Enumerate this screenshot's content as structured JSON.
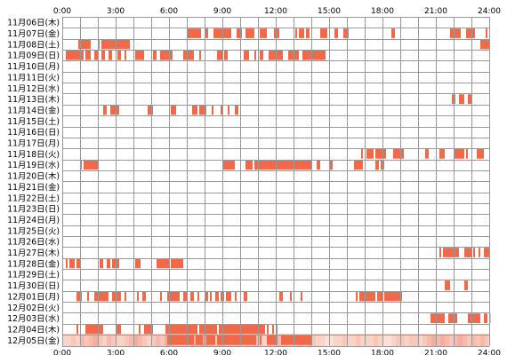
{
  "chart_data": {
    "type": "heatmap",
    "title": "",
    "xlabel": "",
    "ylabel": "",
    "x_range_hours": [
      0,
      24
    ],
    "x_ticks": [
      "0:00",
      "3:00",
      "6:00",
      "9:00",
      "12:00",
      "15:00",
      "18:00",
      "21:00",
      "24:00"
    ],
    "grid": true,
    "colors": {
      "activity": "#f2694a",
      "grid": "#999999",
      "summary_low": "#fdece6",
      "summary_high": "#f4a08a"
    },
    "rows": [
      {
        "label": "11月06日(木)",
        "segments": []
      },
      {
        "label": "11月07日(金)",
        "segments": [
          [
            7.0,
            7.8
          ],
          [
            8.0,
            8.2
          ],
          [
            8.5,
            9.5
          ],
          [
            9.8,
            10.1
          ],
          [
            10.3,
            10.8
          ],
          [
            11.1,
            11.5
          ],
          [
            11.9,
            12.2
          ],
          [
            13.1,
            13.2
          ],
          [
            13.3,
            13.6
          ],
          [
            13.7,
            13.9
          ],
          [
            14.5,
            14.9
          ],
          [
            15.3,
            15.5
          ],
          [
            15.8,
            16.1
          ],
          [
            18.5,
            18.7
          ],
          [
            21.8,
            22.4
          ],
          [
            22.7,
            23.2
          ],
          [
            23.8,
            23.9
          ]
        ]
      },
      {
        "label": "11月08日(土)",
        "segments": [
          [
            0.9,
            1.6
          ],
          [
            2.0,
            2.1
          ],
          [
            2.2,
            3.8
          ],
          [
            23.5,
            24.0
          ]
        ]
      },
      {
        "label": "11月09日(日)",
        "segments": [
          [
            0.2,
            1.2
          ],
          [
            1.3,
            1.6
          ],
          [
            1.8,
            2.0
          ],
          [
            2.2,
            2.4
          ],
          [
            2.6,
            2.8
          ],
          [
            3.1,
            3.3
          ],
          [
            3.5,
            3.6
          ],
          [
            4.1,
            4.6
          ],
          [
            5.1,
            5.3
          ],
          [
            5.5,
            6.2
          ],
          [
            6.8,
            7.4
          ],
          [
            7.7,
            7.8
          ],
          [
            8.7,
            9.0
          ],
          [
            9.1,
            9.3
          ],
          [
            10.2,
            10.5
          ],
          [
            10.8,
            10.9
          ],
          [
            11.1,
            11.3
          ],
          [
            11.6,
            12.4
          ],
          [
            12.7,
            13.3
          ],
          [
            13.5,
            14.8
          ]
        ]
      },
      {
        "label": "11月10日(月)",
        "segments": []
      },
      {
        "label": "11月11日(火)",
        "segments": []
      },
      {
        "label": "11月12日(水)",
        "segments": []
      },
      {
        "label": "11月13日(木)",
        "segments": [
          [
            21.9,
            22.1
          ],
          [
            22.3,
            22.6
          ],
          [
            22.8,
            23.0
          ]
        ]
      },
      {
        "label": "11月14日(金)",
        "segments": [
          [
            2.3,
            2.5
          ],
          [
            2.7,
            3.2
          ],
          [
            4.8,
            5.1
          ],
          [
            6.1,
            6.4
          ],
          [
            7.3,
            7.6
          ],
          [
            7.7,
            8.1
          ],
          [
            8.4,
            8.5
          ],
          [
            8.9,
            9.0
          ],
          [
            9.3,
            9.4
          ],
          [
            9.7,
            9.9
          ]
        ]
      },
      {
        "label": "11月15日(土)",
        "segments": []
      },
      {
        "label": "11月16日(日)",
        "segments": []
      },
      {
        "label": "11月17日(月)",
        "segments": []
      },
      {
        "label": "11月18日(火)",
        "segments": [
          [
            16.8,
            16.9
          ],
          [
            17.1,
            17.5
          ],
          [
            17.6,
            18.2
          ],
          [
            18.6,
            19.2
          ],
          [
            20.4,
            20.6
          ],
          [
            21.2,
            21.5
          ],
          [
            22.0,
            22.6
          ],
          [
            22.7,
            22.8
          ],
          [
            23.3,
            23.7
          ]
        ]
      },
      {
        "label": "11月19日(水)",
        "segments": [
          [
            1.0,
            1.1
          ],
          [
            1.2,
            2.0
          ],
          [
            9.0,
            9.7
          ],
          [
            10.3,
            10.7
          ],
          [
            10.8,
            14.0
          ],
          [
            14.3,
            14.5
          ],
          [
            15.0,
            15.2
          ],
          [
            16.4,
            16.9
          ],
          [
            17.6,
            17.8
          ],
          [
            17.9,
            18.1
          ]
        ]
      },
      {
        "label": "11月20日(木)",
        "segments": []
      },
      {
        "label": "11月21日(金)",
        "segments": []
      },
      {
        "label": "11月22日(土)",
        "segments": []
      },
      {
        "label": "11月23日(日)",
        "segments": []
      },
      {
        "label": "11月24日(月)",
        "segments": []
      },
      {
        "label": "11月25日(火)",
        "segments": []
      },
      {
        "label": "11月26日(水)",
        "segments": []
      },
      {
        "label": "11月27日(木)",
        "segments": [
          [
            21.2,
            21.3
          ],
          [
            21.4,
            22.3
          ],
          [
            22.6,
            23.0
          ],
          [
            23.1,
            23.2
          ],
          [
            23.4,
            23.5
          ],
          [
            23.7,
            24.0
          ]
        ]
      },
      {
        "label": "11月28日(金)",
        "segments": [
          [
            0.2,
            0.3
          ],
          [
            0.4,
            0.7
          ],
          [
            0.8,
            1.0
          ],
          [
            2.1,
            2.3
          ],
          [
            2.5,
            2.7
          ],
          [
            2.8,
            3.2
          ],
          [
            4.1,
            4.4
          ],
          [
            5.3,
            6.0
          ],
          [
            6.1,
            6.8
          ]
        ]
      },
      {
        "label": "11月29日(土)",
        "segments": []
      },
      {
        "label": "11月30日(日)",
        "segments": [
          [
            21.5,
            21.8
          ],
          [
            22.6,
            22.8
          ]
        ]
      },
      {
        "label": "12月01日(月)",
        "segments": [
          [
            0.8,
            1.1
          ],
          [
            1.4,
            1.5
          ],
          [
            1.8,
            2.6
          ],
          [
            2.8,
            3.3
          ],
          [
            3.5,
            3.6
          ],
          [
            4.2,
            4.3
          ],
          [
            4.5,
            4.7
          ],
          [
            5.5,
            5.6
          ],
          [
            5.9,
            6.6
          ],
          [
            6.8,
            7.0
          ],
          [
            7.2,
            7.4
          ],
          [
            7.6,
            7.7
          ],
          [
            8.0,
            8.2
          ],
          [
            8.3,
            8.4
          ],
          [
            8.6,
            8.8
          ],
          [
            8.9,
            9.1
          ],
          [
            9.2,
            9.5
          ],
          [
            9.7,
            9.8
          ],
          [
            10.2,
            10.4
          ],
          [
            12.2,
            12.4
          ],
          [
            12.8,
            12.9
          ],
          [
            13.4,
            13.5
          ],
          [
            16.5,
            16.6
          ],
          [
            16.7,
            17.6
          ],
          [
            17.7,
            18.0
          ],
          [
            18.1,
            19.1
          ]
        ]
      },
      {
        "label": "12月02日(火)",
        "segments": []
      },
      {
        "label": "12月03日(水)",
        "segments": [
          [
            20.7,
            21.5
          ],
          [
            21.7,
            22.2
          ],
          [
            22.8,
            23.5
          ],
          [
            23.7,
            23.9
          ],
          [
            24.0,
            24.0
          ]
        ]
      },
      {
        "label": "12月04日(木)",
        "segments": [
          [
            0.8,
            0.9
          ],
          [
            1.3,
            2.3
          ],
          [
            3.0,
            3.3
          ],
          [
            4.3,
            4.4
          ],
          [
            4.6,
            5.1
          ],
          [
            5.8,
            7.6
          ],
          [
            7.7,
            8.7
          ],
          [
            8.8,
            11.4
          ],
          [
            11.5,
            11.6
          ],
          [
            11.8,
            11.9
          ],
          [
            12.0,
            12.1
          ]
        ]
      },
      {
        "label": "12月05日(金)",
        "segments": [
          [
            5.9,
            7.4
          ],
          [
            7.5,
            7.9
          ],
          [
            8.1,
            8.6
          ],
          [
            8.7,
            10.9
          ],
          [
            11.1,
            11.2
          ],
          [
            11.5,
            12.1
          ],
          [
            12.3,
            14.0
          ]
        ]
      }
    ],
    "summary_bar": [
      2,
      2,
      3,
      2,
      4,
      3,
      4,
      5,
      3,
      2,
      4,
      3,
      2,
      2,
      3,
      4,
      5,
      4,
      3,
      2,
      3,
      4,
      3,
      5,
      4,
      3,
      2,
      2,
      3,
      5,
      4,
      6,
      5,
      4,
      3,
      5,
      4,
      3,
      3,
      4,
      3,
      4,
      3,
      4,
      3,
      2,
      3,
      3,
      4,
      3,
      3,
      2,
      3,
      4,
      3,
      4,
      3,
      2,
      2,
      1,
      1,
      2,
      2,
      3,
      2,
      2,
      3,
      2,
      2,
      2,
      3,
      2,
      1,
      1,
      2,
      3,
      3,
      2,
      3,
      3,
      2,
      3,
      4,
      5,
      4,
      5,
      4,
      3,
      4,
      5,
      4,
      3,
      4,
      3,
      4,
      3
    ]
  }
}
